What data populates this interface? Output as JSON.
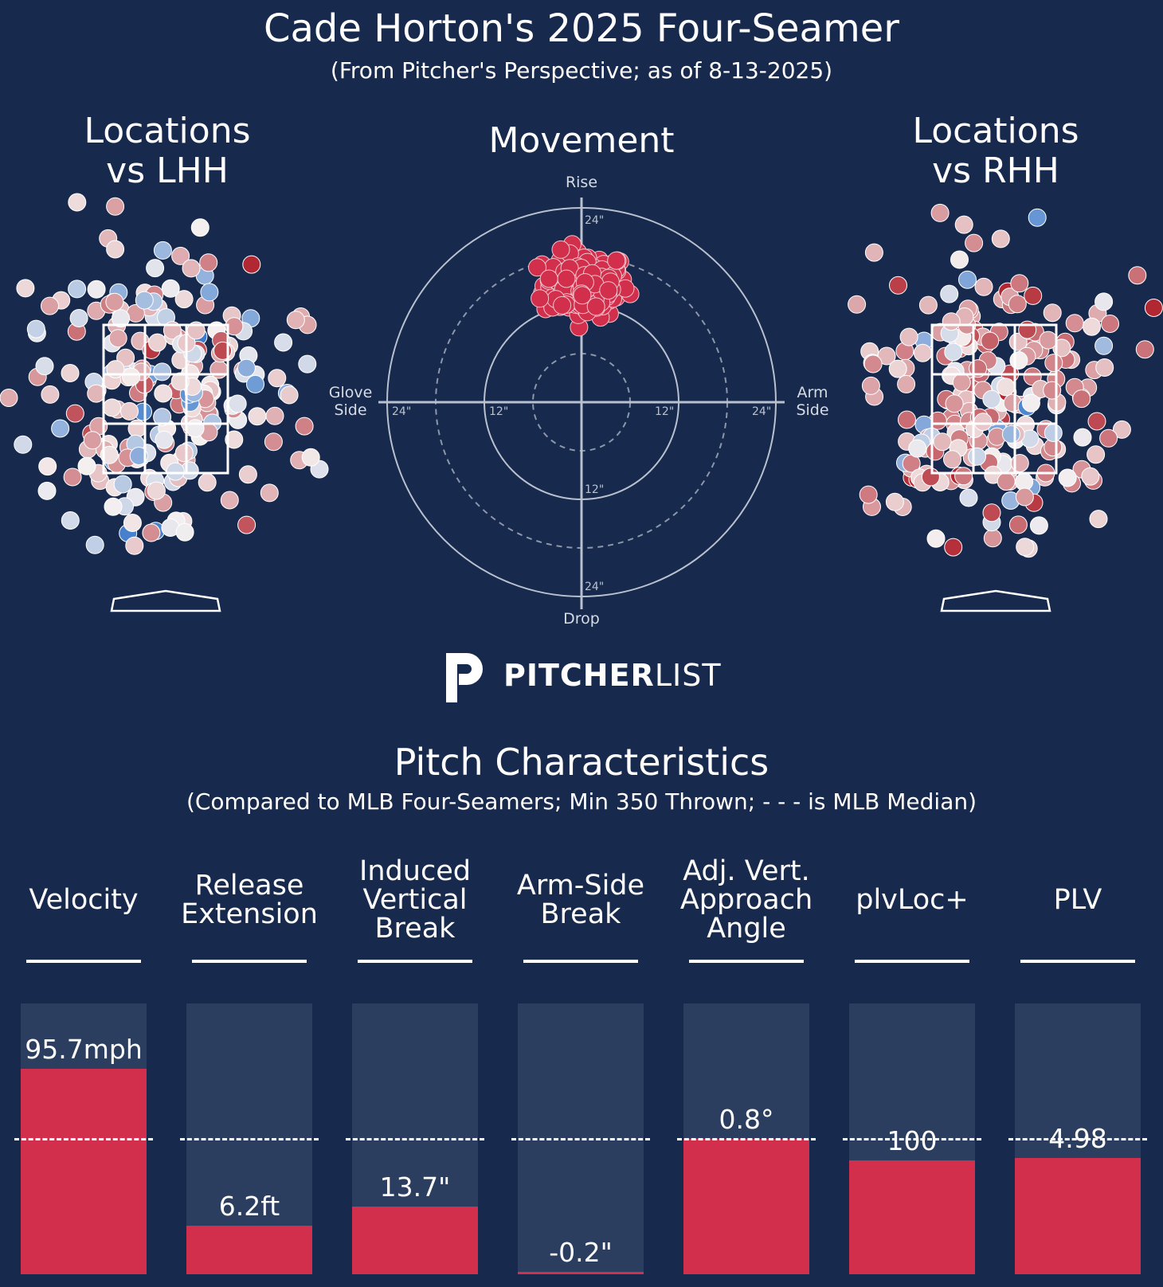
{
  "header": {
    "title": "Cade Horton's 2025 Four-Seamer",
    "subtitle": "(From Pitcher's Perspective; as of 8-13-2025)"
  },
  "panels": {
    "lhh_title_1": "Locations",
    "lhh_title_2": "vs LHH",
    "movement_title": "Movement",
    "rhh_title_1": "Locations",
    "rhh_title_2": "vs RHH"
  },
  "movement_axes": {
    "top": "Rise",
    "bottom": "Drop",
    "left_1": "Glove",
    "left_2": "Side",
    "right_1": "Arm",
    "right_2": "Side",
    "ring_24": "24\"",
    "ring_12": "12\""
  },
  "logo": {
    "text_bold": "PITCHER",
    "text_light": "LIST"
  },
  "characteristics": {
    "title": "Pitch Characteristics",
    "subtitle": "(Compared to MLB Four-Seamers; Min 350 Thrown; - - - is MLB Median)"
  },
  "colors": {
    "background": "#17294c",
    "bar_track": "#2c3e60",
    "bar_fill": "#d12f4b",
    "movement_dot": "#d12f4b",
    "text": "#ffffff"
  },
  "chart_data": [
    {
      "type": "bar",
      "title": "Pitch Characteristics",
      "median_line": 0.5,
      "metrics": [
        {
          "label_lines": [
            "Velocity"
          ],
          "value_label": "95.7mph",
          "fill": 0.76
        },
        {
          "label_lines": [
            "Release",
            "Extension"
          ],
          "value_label": "6.2ft",
          "fill": 0.18
        },
        {
          "label_lines": [
            "Induced",
            "Vertical",
            "Break"
          ],
          "value_label": "13.7\"",
          "fill": 0.25
        },
        {
          "label_lines": [
            "Arm-Side",
            "Break"
          ],
          "value_label": "-0.2\"",
          "fill": 0.01
        },
        {
          "label_lines": [
            "Adj. Vert.",
            "Approach",
            "Angle"
          ],
          "value_label": "0.8°",
          "fill": 0.5
        },
        {
          "label_lines": [
            "plvLoc+"
          ],
          "value_label": "100",
          "fill": 0.42
        },
        {
          "label_lines": [
            "PLV"
          ],
          "value_label": "4.98",
          "fill": 0.43
        }
      ]
    },
    {
      "type": "scatter",
      "title": "Movement",
      "x_axis": "horizontal break (in), glove side negative, arm side positive",
      "y_axis": "induced vertical break (in)",
      "rings": [
        6,
        12,
        18,
        24
      ],
      "cluster": {
        "x_center": 0.5,
        "y_center": 14.5,
        "x_range": [
          -6,
          6
        ],
        "y_range": [
          7,
          16
        ]
      }
    },
    {
      "type": "scatter",
      "title": "Locations vs LHH",
      "strike_zone": "3x3 grid",
      "color_scale": "blue (low) - white - red (high)"
    },
    {
      "type": "scatter",
      "title": "Locations vs RHH",
      "strike_zone": "3x3 grid",
      "color_scale": "blue (low) - white - red (high)"
    }
  ]
}
